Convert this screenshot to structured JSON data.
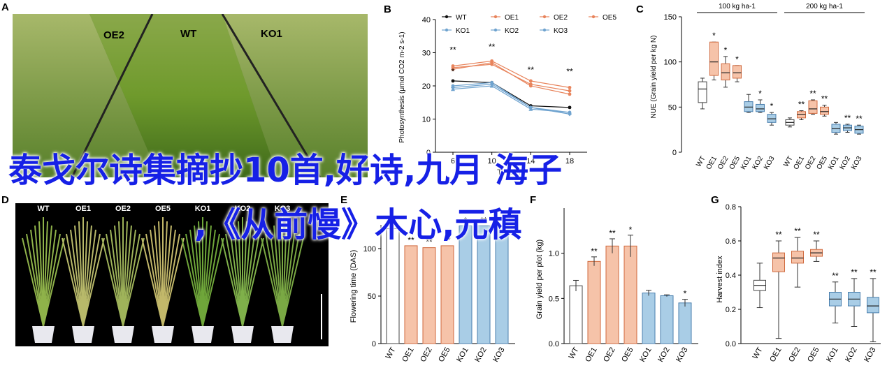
{
  "panels": {
    "A": {
      "label": "A",
      "plots": [
        "OE2",
        "WT",
        "KO1"
      ]
    },
    "D": {
      "label": "D",
      "plants": [
        "WT",
        "OE1",
        "OE2",
        "OE5",
        "KO1",
        "KO2",
        "KO3"
      ]
    }
  },
  "overlay": {
    "line1": "泰戈尔诗集摘抄10首,好诗,九月 海子",
    "line2": ",《从前慢》木心,元稹"
  },
  "colors": {
    "WT": "#111111",
    "OE1": "#e8845c",
    "OE2": "#e8845c",
    "OE5": "#e8845c",
    "KO1": "#6fa3cf",
    "KO2": "#6fa3cf",
    "KO3": "#6fa3cf",
    "overlay": "#1620e6"
  },
  "chart_data": [
    {
      "id": "B",
      "panel_label": "B",
      "type": "line",
      "xlabel": "Time (h)",
      "ylabel": "Photosynthesis (μmol CO2 m-2 s-1)",
      "x": [
        6,
        10,
        14,
        18
      ],
      "x_ticks": [
        "6",
        "10",
        "14",
        "18"
      ],
      "ylim": [
        0,
        40
      ],
      "y_ticks": [
        0,
        10,
        20,
        30,
        40
      ],
      "legend": [
        "WT",
        "OE1",
        "OE2",
        "OE5",
        "KO1",
        "KO2",
        "KO3"
      ],
      "legend_placement": "top",
      "series": [
        {
          "name": "WT",
          "values": [
            21.5,
            21,
            14,
            13.5
          ]
        },
        {
          "name": "OE1",
          "values": [
            25.5,
            26.5,
            20.5,
            18.5
          ]
        },
        {
          "name": "OE2",
          "values": [
            25,
            27,
            20,
            17.5
          ]
        },
        {
          "name": "OE5",
          "values": [
            26,
            27.5,
            21.5,
            19.5
          ]
        },
        {
          "name": "KO1",
          "values": [
            19,
            20,
            13,
            12
          ]
        },
        {
          "name": "KO2",
          "values": [
            19.5,
            20.5,
            13.5,
            11.5
          ]
        },
        {
          "name": "KO3",
          "values": [
            20,
            21,
            13.5,
            12
          ]
        }
      ],
      "annotations": [
        {
          "x": 6,
          "text": "**",
          "y": 30
        },
        {
          "x": 6,
          "text": "*",
          "y": 23.5
        },
        {
          "x": 10,
          "text": "**",
          "y": 31
        },
        {
          "x": 14,
          "text": "**",
          "y": 24
        },
        {
          "x": 18,
          "text": "**",
          "y": 23.5
        }
      ]
    },
    {
      "id": "C",
      "panel_label": "C",
      "type": "box",
      "ylabel": "NUE (Grain yield per kg N)",
      "ylim": [
        0,
        150
      ],
      "y_ticks": [
        0,
        50,
        100,
        150
      ],
      "groups": [
        {
          "label": "100 kg ha-1",
          "categories": [
            "WT",
            "OE1",
            "OE2",
            "OE5",
            "KO1",
            "KO2",
            "KO3"
          ],
          "boxes": [
            {
              "name": "WT",
              "q1": 55,
              "median": 70,
              "q3": 78,
              "min": 48,
              "max": 82,
              "sig": ""
            },
            {
              "name": "OE1",
              "q1": 85,
              "median": 100,
              "q3": 122,
              "min": 80,
              "max": 122,
              "sig": "*"
            },
            {
              "name": "OE2",
              "q1": 80,
              "median": 88,
              "q3": 98,
              "min": 72,
              "max": 106,
              "sig": "*"
            },
            {
              "name": "OE5",
              "q1": 82,
              "median": 88,
              "q3": 96,
              "min": 78,
              "max": 96,
              "sig": "*"
            },
            {
              "name": "KO1",
              "q1": 45,
              "median": 50,
              "q3": 56,
              "min": 44,
              "max": 64,
              "sig": ""
            },
            {
              "name": "KO2",
              "q1": 45,
              "median": 48,
              "q3": 53,
              "min": 44,
              "max": 58,
              "sig": "*"
            },
            {
              "name": "KO3",
              "q1": 33,
              "median": 37,
              "q3": 42,
              "min": 30,
              "max": 44,
              "sig": "*"
            }
          ]
        },
        {
          "label": "200 kg ha-1",
          "categories": [
            "WT",
            "OE1",
            "OE2",
            "OE5",
            "KO1",
            "KO2",
            "KO3"
          ],
          "boxes": [
            {
              "name": "WT",
              "q1": 30,
              "median": 33,
              "q3": 36,
              "min": 28,
              "max": 38,
              "sig": ""
            },
            {
              "name": "OE1",
              "q1": 38,
              "median": 42,
              "q3": 45,
              "min": 36,
              "max": 46,
              "sig": "**"
            },
            {
              "name": "OE2",
              "q1": 43,
              "median": 48,
              "q3": 57,
              "min": 42,
              "max": 58,
              "sig": "**"
            },
            {
              "name": "OE5",
              "q1": 42,
              "median": 45,
              "q3": 50,
              "min": 40,
              "max": 52,
              "sig": "**"
            },
            {
              "name": "KO1",
              "q1": 22,
              "median": 26,
              "q3": 31,
              "min": 20,
              "max": 33,
              "sig": ""
            },
            {
              "name": "KO2",
              "q1": 24,
              "median": 27,
              "q3": 30,
              "min": 22,
              "max": 31,
              "sig": "**"
            },
            {
              "name": "KO3",
              "q1": 21,
              "median": 25,
              "q3": 29,
              "min": 20,
              "max": 30,
              "sig": "**"
            }
          ]
        }
      ]
    },
    {
      "id": "E",
      "panel_label": "E",
      "type": "bar",
      "ylabel": "Flowering time (DAS)",
      "ylim": [
        0,
        125
      ],
      "y_ticks": [
        0,
        50,
        100
      ],
      "categories": [
        "WT",
        "OE1",
        "OE2",
        "OE5",
        "KO1",
        "KO2",
        "KO3"
      ],
      "values": [
        121,
        103,
        101,
        103,
        124,
        124,
        124
      ],
      "significance": [
        "",
        "**",
        "**",
        "**",
        "*",
        "**",
        "**"
      ]
    },
    {
      "id": "F",
      "panel_label": "F",
      "type": "bar",
      "ylabel": "Grain yield per plot (kg)",
      "ylim": [
        0,
        1.5
      ],
      "y_ticks": [
        0.0,
        0.5,
        1.0
      ],
      "y_tick_labels": [
        "0.0",
        "0.5",
        "1.0"
      ],
      "categories": [
        "WT",
        "OE1",
        "OE2",
        "OE5",
        "KO1",
        "KO2",
        "KO3"
      ],
      "values": [
        0.64,
        0.91,
        1.08,
        1.08,
        0.56,
        0.53,
        0.45
      ],
      "errors": [
        0.06,
        0.05,
        0.08,
        0.12,
        0.03,
        0.01,
        0.04
      ],
      "significance": [
        "",
        "**",
        "**",
        "*",
        "",
        "",
        "*"
      ]
    },
    {
      "id": "G",
      "panel_label": "G",
      "type": "box",
      "ylabel": "Harvest index",
      "ylim": [
        0,
        0.8
      ],
      "y_ticks": [
        0.0,
        0.2,
        0.4,
        0.6,
        0.8
      ],
      "y_tick_labels": [
        "0.0",
        "0.2",
        "0.4",
        "0.6",
        "0.8"
      ],
      "categories": [
        "WT",
        "OE1",
        "OE2",
        "OE5",
        "KO1",
        "KO2",
        "KO3"
      ],
      "boxes": [
        {
          "name": "WT",
          "q1": 0.31,
          "median": 0.34,
          "q3": 0.37,
          "min": 0.21,
          "max": 0.47,
          "sig": ""
        },
        {
          "name": "OE1",
          "q1": 0.42,
          "median": 0.5,
          "q3": 0.53,
          "min": 0.03,
          "max": 0.6,
          "sig": "**"
        },
        {
          "name": "OE2",
          "q1": 0.47,
          "median": 0.5,
          "q3": 0.54,
          "min": 0.33,
          "max": 0.62,
          "sig": "**"
        },
        {
          "name": "OE5",
          "q1": 0.51,
          "median": 0.53,
          "q3": 0.55,
          "min": 0.48,
          "max": 0.6,
          "sig": "**"
        },
        {
          "name": "KO1",
          "q1": 0.22,
          "median": 0.26,
          "q3": 0.3,
          "min": 0.12,
          "max": 0.36,
          "sig": "**"
        },
        {
          "name": "KO2",
          "q1": 0.22,
          "median": 0.26,
          "q3": 0.3,
          "min": 0.1,
          "max": 0.38,
          "sig": "**"
        },
        {
          "name": "KO3",
          "q1": 0.18,
          "median": 0.22,
          "q3": 0.27,
          "min": 0.01,
          "max": 0.38,
          "sig": "**"
        }
      ]
    }
  ]
}
